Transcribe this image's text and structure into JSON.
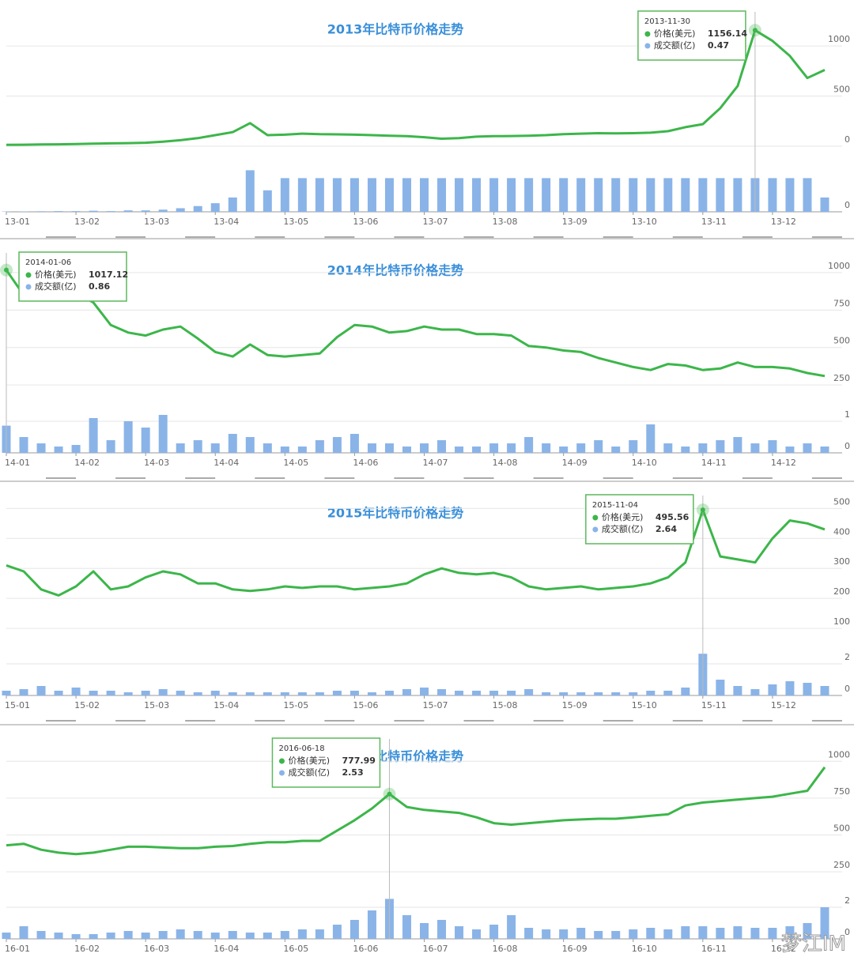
{
  "chart_data": [
    {
      "type": "line",
      "title": "2013年比特币价格走势",
      "categories": [
        "13-01",
        null,
        null,
        null,
        "13-02",
        null,
        null,
        null,
        "13-03",
        null,
        null,
        null,
        "13-04",
        null,
        null,
        null,
        "13-05",
        null,
        null,
        null,
        "13-06",
        null,
        null,
        null,
        "13-07",
        null,
        null,
        null,
        "13-08",
        null,
        null,
        null,
        "13-09",
        null,
        null,
        null,
        "13-10",
        null,
        null,
        null,
        "13-11",
        null,
        null,
        null,
        "13-12",
        null,
        null,
        null
      ],
      "series": [
        {
          "name": "价格(美元)",
          "color": "#3cb64a",
          "values": [
            13,
            15,
            17,
            19,
            21,
            25,
            28,
            31,
            35,
            45,
            60,
            80,
            110,
            140,
            230,
            110,
            115,
            125,
            120,
            118,
            115,
            110,
            105,
            100,
            90,
            75,
            80,
            95,
            100,
            102,
            105,
            110,
            120,
            125,
            130,
            128,
            130,
            135,
            150,
            190,
            220,
            380,
            600,
            1156.14,
            1050,
            900,
            680,
            760
          ]
        },
        {
          "name": "成交额(亿)",
          "type": "bar",
          "axis": "y2",
          "color": "#8ab4e8",
          "values": [
            0.005,
            0.005,
            0.008,
            0.01,
            0.01,
            0.015,
            0.01,
            0.02,
            0.02,
            0.03,
            0.05,
            0.08,
            0.12,
            0.2,
            0.58,
            0.3,
            0.47,
            0.47,
            0.47,
            0.47,
            0.47,
            0.47,
            0.47,
            0.47,
            0.47,
            0.47,
            0.47,
            0.47,
            0.47,
            0.47,
            0.47,
            0.47,
            0.47,
            0.47,
            0.47,
            0.47,
            0.47,
            0.47,
            0.47,
            0.47,
            0.47,
            0.47,
            0.47,
            0.47,
            0.47,
            0.47,
            0.47,
            0.2
          ]
        }
      ],
      "ylim": [
        0,
        1300
      ],
      "yticks": [
        0,
        500,
        1000
      ],
      "y2lim": [
        0,
        0.75
      ],
      "y2ticks": [
        0
      ],
      "grid": true,
      "tooltip": {
        "date": "2013-11-30"
      }
    },
    {
      "type": "line",
      "title": "2014年比特币价格走势",
      "categories": [
        "14-01",
        null,
        null,
        null,
        "14-02",
        null,
        null,
        null,
        "14-03",
        null,
        null,
        null,
        "14-04",
        null,
        null,
        null,
        "14-05",
        null,
        null,
        null,
        "14-06",
        null,
        null,
        null,
        "14-07",
        null,
        null,
        null,
        "14-08",
        null,
        null,
        null,
        "14-09",
        null,
        null,
        null,
        "14-10",
        null,
        null,
        null,
        "14-11",
        null,
        null,
        null,
        "14-12",
        null,
        null,
        null
      ],
      "series": [
        {
          "name": "价格(美元)",
          "color": "#3cb64a",
          "values": [
            1017.12,
            850,
            900,
            830,
            870,
            800,
            650,
            600,
            580,
            620,
            640,
            560,
            470,
            440,
            520,
            450,
            440,
            450,
            460,
            570,
            650,
            640,
            600,
            610,
            640,
            620,
            620,
            590,
            590,
            580,
            510,
            500,
            480,
            470,
            430,
            400,
            370,
            350,
            390,
            380,
            350,
            360,
            400,
            370,
            370,
            360,
            330,
            310
          ]
        },
        {
          "name": "成交额(亿)",
          "type": "bar",
          "axis": "y2",
          "color": "#8ab4e8",
          "values": [
            0.86,
            0.5,
            0.3,
            0.2,
            0.25,
            1.1,
            0.4,
            1.0,
            0.8,
            1.2,
            0.3,
            0.4,
            0.3,
            0.6,
            0.5,
            0.3,
            0.2,
            0.2,
            0.4,
            0.5,
            0.6,
            0.3,
            0.3,
            0.2,
            0.3,
            0.4,
            0.2,
            0.2,
            0.3,
            0.3,
            0.5,
            0.3,
            0.2,
            0.3,
            0.4,
            0.2,
            0.4,
            0.9,
            0.3,
            0.2,
            0.3,
            0.4,
            0.5,
            0.3,
            0.4,
            0.2,
            0.3,
            0.2
          ]
        }
      ],
      "ylim": [
        235,
        1105
      ],
      "yticks": [
        250,
        500,
        750,
        1000
      ],
      "y2lim": [
        0,
        1.7
      ],
      "y2ticks": [
        0,
        1
      ],
      "grid": true,
      "tooltip": {
        "date": "2014-01-06"
      }
    },
    {
      "type": "line",
      "title": "2015年比特币价格走势",
      "categories": [
        "15-01",
        null,
        null,
        null,
        "15-02",
        null,
        null,
        null,
        "15-03",
        null,
        null,
        null,
        "15-04",
        null,
        null,
        null,
        "15-05",
        null,
        null,
        null,
        "15-06",
        null,
        null,
        null,
        "15-07",
        null,
        null,
        null,
        "15-08",
        null,
        null,
        null,
        "15-09",
        null,
        null,
        null,
        "15-10",
        null,
        null,
        null,
        "15-11",
        null,
        null,
        null,
        "15-12",
        null,
        null,
        null
      ],
      "series": [
        {
          "name": "价格(美元)",
          "color": "#3cb64a",
          "values": [
            310,
            290,
            230,
            210,
            240,
            290,
            230,
            240,
            270,
            290,
            280,
            250,
            250,
            230,
            225,
            230,
            240,
            235,
            240,
            240,
            230,
            235,
            240,
            250,
            280,
            300,
            285,
            280,
            285,
            270,
            240,
            230,
            235,
            240,
            230,
            235,
            240,
            250,
            270,
            320,
            495.56,
            340,
            330,
            320,
            400,
            460,
            450,
            430
          ]
        },
        {
          "name": "成交额(亿)",
          "type": "bar",
          "axis": "y2",
          "color": "#8ab4e8",
          "values": [
            0.3,
            0.4,
            0.6,
            0.3,
            0.5,
            0.3,
            0.3,
            0.2,
            0.3,
            0.4,
            0.3,
            0.2,
            0.3,
            0.2,
            0.2,
            0.2,
            0.2,
            0.2,
            0.2,
            0.3,
            0.3,
            0.2,
            0.3,
            0.4,
            0.5,
            0.4,
            0.3,
            0.3,
            0.3,
            0.3,
            0.4,
            0.2,
            0.2,
            0.2,
            0.2,
            0.2,
            0.2,
            0.3,
            0.3,
            0.5,
            2.64,
            1.0,
            0.6,
            0.4,
            0.7,
            0.9,
            0.8,
            0.6
          ]
        }
      ],
      "ylim": [
        95,
        530
      ],
      "yticks": [
        100,
        200,
        300,
        400,
        500
      ],
      "y2lim": [
        0,
        3.4
      ],
      "y2ticks": [
        0,
        2
      ],
      "grid": true,
      "tooltip": {
        "date": "2015-11-04"
      }
    },
    {
      "type": "line",
      "title": "2016年比特币价格走势",
      "categories": [
        "16-01",
        null,
        null,
        null,
        "16-02",
        null,
        null,
        null,
        "16-03",
        null,
        null,
        null,
        "16-04",
        null,
        null,
        null,
        "16-05",
        null,
        null,
        null,
        "16-06",
        null,
        null,
        null,
        "16-07",
        null,
        null,
        null,
        "16-08",
        null,
        null,
        null,
        "16-09",
        null,
        null,
        null,
        "16-10",
        null,
        null,
        null,
        "16-11",
        null,
        null,
        null,
        "16-12",
        null,
        null,
        null
      ],
      "series": [
        {
          "name": "价格(美元)",
          "color": "#3cb64a",
          "values": [
            430,
            440,
            400,
            380,
            370,
            380,
            400,
            420,
            420,
            415,
            410,
            410,
            420,
            425,
            440,
            450,
            450,
            460,
            460,
            530,
            600,
            680,
            777.99,
            690,
            670,
            660,
            650,
            620,
            580,
            570,
            580,
            590,
            600,
            605,
            610,
            610,
            620,
            630,
            640,
            700,
            720,
            730,
            740,
            750,
            760,
            780,
            800,
            960
          ]
        },
        {
          "name": "成交额(亿)",
          "type": "bar",
          "axis": "y2",
          "color": "#8ab4e8",
          "values": [
            0.4,
            0.8,
            0.5,
            0.4,
            0.3,
            0.3,
            0.4,
            0.5,
            0.4,
            0.5,
            0.6,
            0.5,
            0.4,
            0.5,
            0.4,
            0.4,
            0.5,
            0.6,
            0.6,
            0.9,
            1.2,
            1.8,
            2.53,
            1.5,
            1.0,
            1.2,
            0.8,
            0.6,
            0.9,
            1.5,
            0.7,
            0.6,
            0.6,
            0.7,
            0.5,
            0.5,
            0.6,
            0.7,
            0.6,
            0.8,
            0.8,
            0.7,
            0.8,
            0.7,
            0.7,
            0.8,
            1.0,
            2.0
          ]
        }
      ],
      "ylim": [
        240,
        1125
      ],
      "yticks": [
        250,
        500,
        750,
        1000
      ],
      "y2lim": [
        0,
        3.4
      ],
      "y2ticks": [
        0,
        2
      ],
      "grid": true,
      "tooltip": {
        "date": "2016-06-18"
      }
    }
  ],
  "watermark": "梦江IM"
}
